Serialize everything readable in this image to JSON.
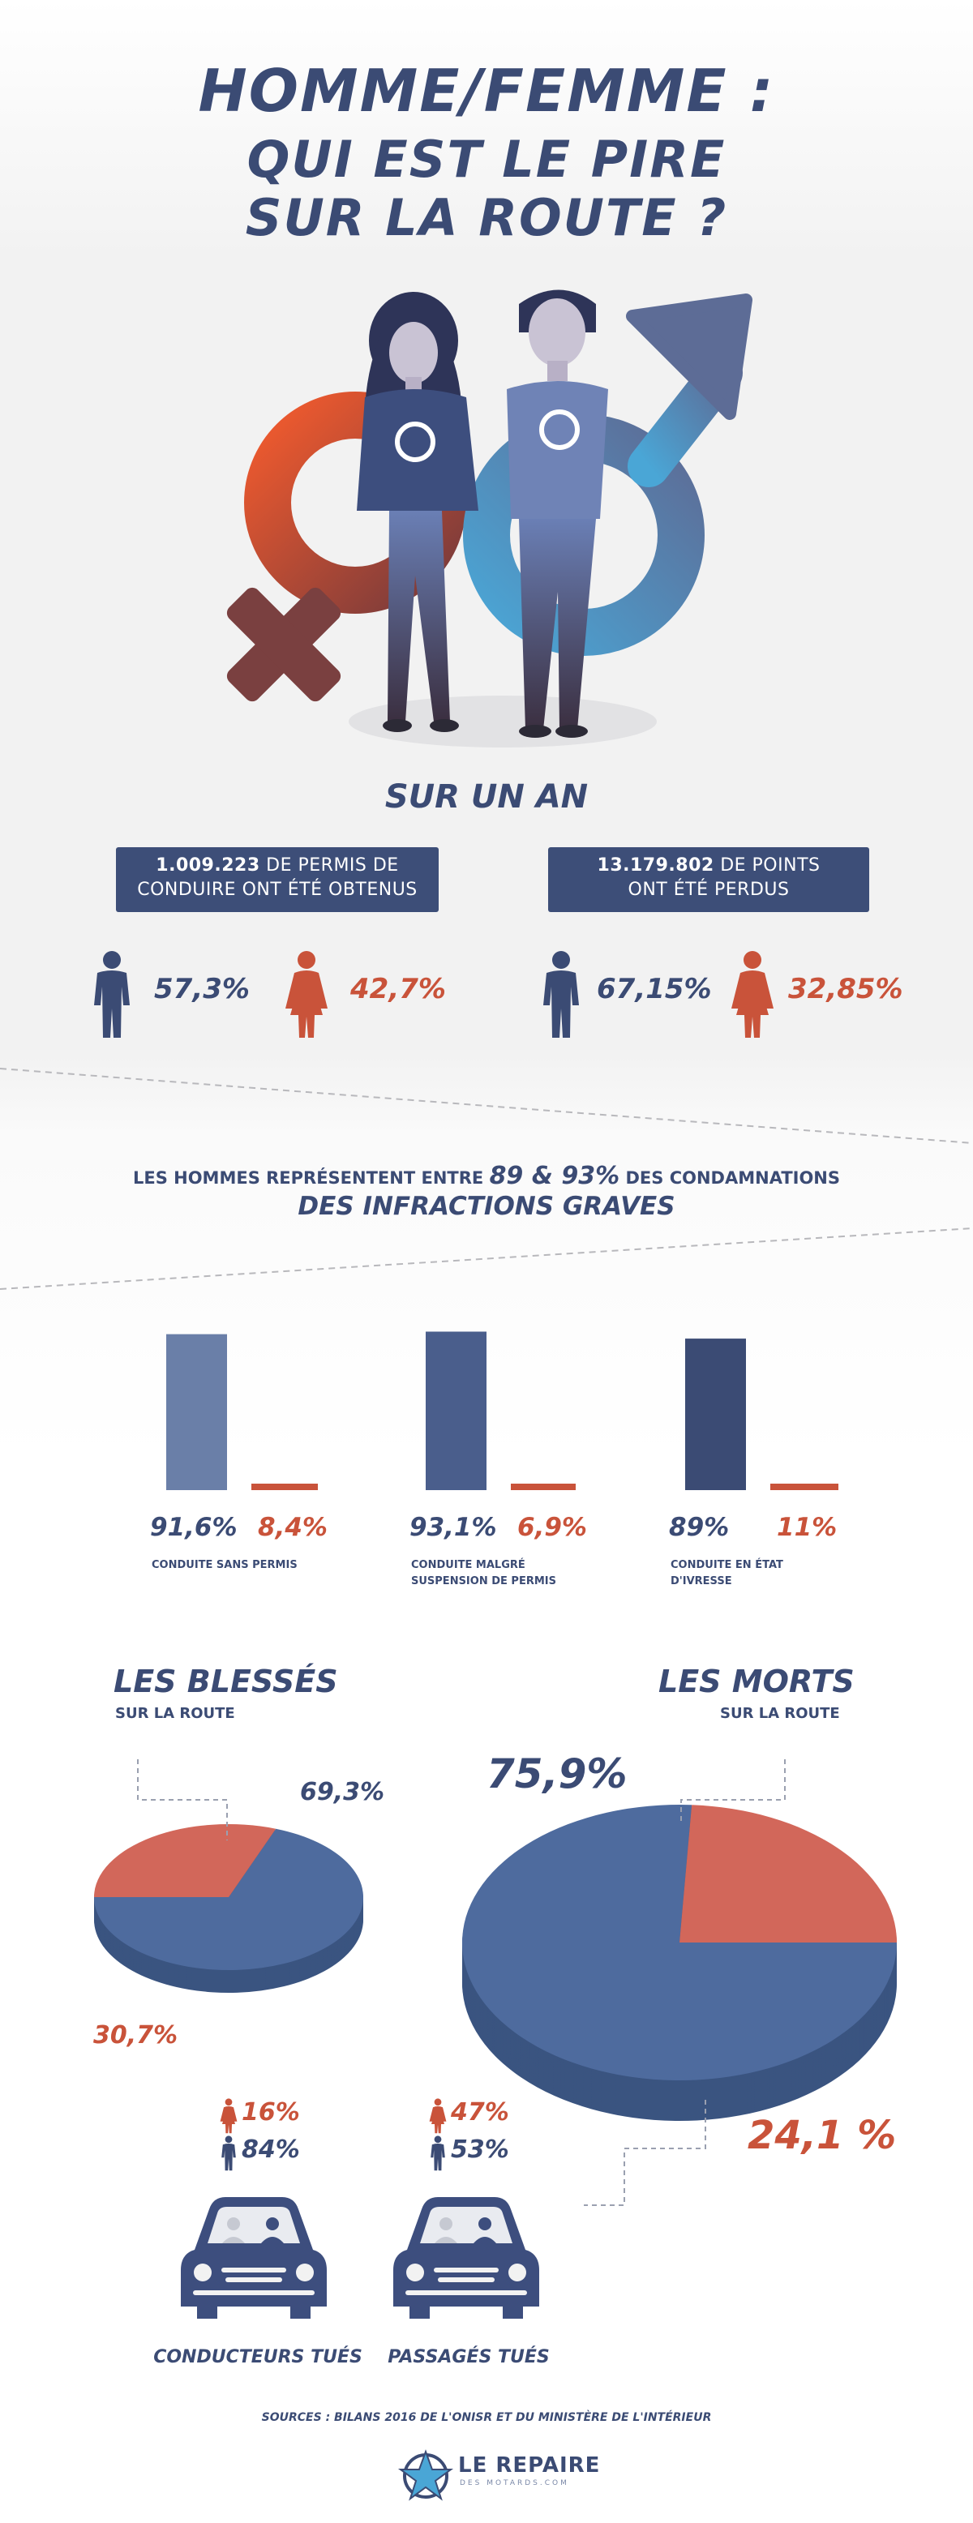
{
  "header": {
    "line1": "HOMME/FEMME :",
    "line2": "QUI EST LE PIRE",
    "line3": "SUR LA ROUTE ?"
  },
  "colors": {
    "navy": "#3b4b74",
    "blue": "#4a6a9f",
    "red": "#c9533a",
    "orange": "#e8603b",
    "light_blue": "#4aa6d6"
  },
  "year": {
    "heading": "SUR UN AN",
    "box_left": {
      "value": "1.009.223",
      "text1": "DE PERMIS DE",
      "text2": "CONDUIRE ONT ÉTÉ OBTENUS"
    },
    "box_right": {
      "value": "13.179.802",
      "text1": "DE POINTS",
      "text2": "ONT ÉTÉ PERDUS"
    },
    "left_male": "57,3%",
    "left_female": "42,7%",
    "right_male": "67,15%",
    "right_female": "32,85%"
  },
  "infractions": {
    "line1_pre": "LES HOMMES REPRÉSENTENT ENTRE ",
    "line1_big": "89 & 93%",
    "line1_post": " DES CONDAMNATIONS",
    "line2": "DES INFRACTIONS GRAVES"
  },
  "chart_data": [
    {
      "type": "bar",
      "categories": [
        "CONDUITE SANS PERMIS",
        "CONDUITE MALGRÉ SUSPENSION DE PERMIS",
        "CONDUITE EN ÉTAT D'IVRESSE"
      ],
      "category_lines": [
        [
          "CONDUITE SANS PERMIS"
        ],
        [
          "CONDUITE MALGRÉ",
          "SUSPENSION DE PERMIS"
        ],
        [
          "CONDUITE EN ÉTAT",
          "D'IVRESSE"
        ]
      ],
      "series": [
        {
          "values": [
            91.6,
            93.1,
            89
          ],
          "labels": [
            "91,6%",
            "93,1%",
            "89%"
          ],
          "colors": [
            "#6a7fa8",
            "#4a5e8c",
            "#3b4b74"
          ]
        },
        {
          "values": [
            8.4,
            6.9,
            11
          ],
          "labels": [
            "8,4%",
            "6,9%",
            "11%"
          ],
          "colors": [
            "#c9533a",
            "#c9533a",
            "#c9533a"
          ]
        }
      ],
      "ylim": [
        0,
        100
      ]
    },
    {
      "type": "pie",
      "title": "LES BLESSÉS",
      "subtitle": "SUR LA ROUTE",
      "values": [
        69.3,
        30.7
      ],
      "labels": [
        "69,3%",
        "30,7%"
      ],
      "colors": [
        "#4e6b9e",
        "#d2675a"
      ]
    },
    {
      "type": "pie",
      "title": "LES MORTS",
      "subtitle": "SUR LA ROUTE",
      "values": [
        75.9,
        24.1
      ],
      "labels": [
        "75,9%",
        "24,1 %"
      ],
      "colors": [
        "#4e6b9e",
        "#d2675a"
      ]
    }
  ],
  "killed": {
    "drivers": {
      "female": "16%",
      "male": "84%",
      "caption": "CONDUCTEURS TUÉS"
    },
    "passengers": {
      "female": "47%",
      "male": "53%",
      "caption": "PASSAGÉS TUÉS"
    }
  },
  "sources": "SOURCES : BILANS 2016 DE L'ONISR ET DU MINISTÈRE DE L'INTÉRIEUR",
  "logo": {
    "name": "LE REPAIRE",
    "sub": "DES MOTARDS.COM"
  }
}
